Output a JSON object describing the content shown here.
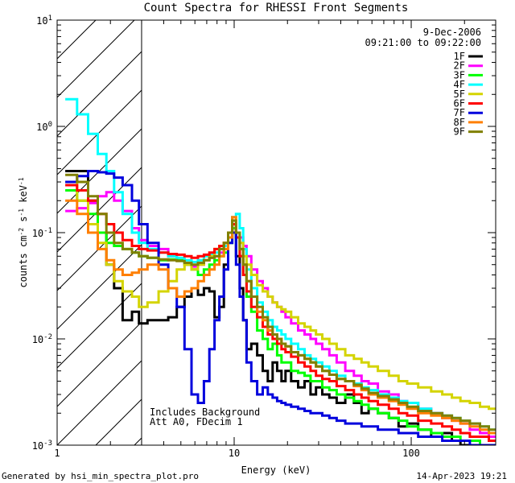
{
  "chart_data": {
    "type": "line",
    "title": "Count Spectra for RHESSI Front Segments",
    "xlabel": "Energy (keV)",
    "ylabel": {
      "main": "counts cm",
      "exp1": "-2",
      "mid": " s",
      "exp2": "-1",
      "end": " keV",
      "exp3": "-1"
    },
    "xscale": "log",
    "yscale": "log",
    "xlim": [
      1,
      300
    ],
    "ylim": [
      0.001,
      10
    ],
    "xticks": [
      {
        "v": 1,
        "label": "1"
      },
      {
        "v": 10,
        "label": "10"
      },
      {
        "v": 100,
        "label": "100"
      }
    ],
    "yticks": [
      {
        "v": 0.001,
        "base": "10",
        "exp": "-3"
      },
      {
        "v": 0.01,
        "base": "10",
        "exp": "-2"
      },
      {
        "v": 0.1,
        "base": "10",
        "exp": "-1"
      },
      {
        "v": 1,
        "base": "10",
        "exp": "0"
      },
      {
        "v": 10,
        "base": "10",
        "exp": "1"
      }
    ],
    "date": "9-Dec-2006",
    "time_range": "09:21:00 to 09:22:00",
    "annotations": [
      "Includes Background",
      "Att A0, FDecim 1"
    ],
    "excluded_region_keV": [
      1,
      3
    ],
    "legend_position": "top-right",
    "series": [
      {
        "name": "1F",
        "color": "#000000",
        "x": [
          1.2,
          1.4,
          1.6,
          1.8,
          2.0,
          2.2,
          2.5,
          2.8,
          3.0,
          3.5,
          4.0,
          4.5,
          5.0,
          5.5,
          6.0,
          6.5,
          7.0,
          7.5,
          8.0,
          8.5,
          9.0,
          9.5,
          10.0,
          10.5,
          11.0,
          11.5,
          12,
          13,
          14,
          15,
          16,
          17,
          18,
          19,
          20,
          22,
          24,
          26,
          28,
          30,
          33,
          36,
          40,
          45,
          50,
          55,
          60,
          70,
          80,
          90,
          100,
          120,
          140,
          160,
          180,
          200,
          230,
          260,
          290
        ],
        "y": [
          0.38,
          0.38,
          0.2,
          0.1,
          0.05,
          0.03,
          0.015,
          0.018,
          0.014,
          0.015,
          0.015,
          0.016,
          0.02,
          0.025,
          0.03,
          0.026,
          0.03,
          0.028,
          0.016,
          0.02,
          0.05,
          0.09,
          0.12,
          0.06,
          0.03,
          0.015,
          0.008,
          0.009,
          0.007,
          0.005,
          0.004,
          0.006,
          0.005,
          0.004,
          0.005,
          0.004,
          0.0035,
          0.004,
          0.003,
          0.0035,
          0.003,
          0.0028,
          0.0025,
          0.003,
          0.0025,
          0.002,
          0.0022,
          0.002,
          0.0018,
          0.0015,
          0.0016,
          0.0014,
          0.0012,
          0.0013,
          0.0011,
          0.001,
          0.001,
          0.001,
          0.001
        ]
      },
      {
        "name": "2F",
        "color": "#ff00ff",
        "x": [
          1.2,
          1.4,
          1.6,
          1.8,
          2.0,
          2.2,
          2.5,
          2.8,
          3.0,
          3.5,
          4.0,
          4.5,
          5.0,
          5.5,
          6.0,
          6.5,
          7.0,
          7.5,
          8.0,
          8.5,
          9.0,
          9.5,
          10.0,
          10.5,
          11.0,
          11.5,
          12,
          13,
          14,
          15,
          16,
          17,
          18,
          19,
          20,
          22,
          24,
          26,
          28,
          30,
          33,
          36,
          40,
          45,
          50,
          55,
          60,
          70,
          80,
          90,
          100,
          120,
          140,
          160,
          180,
          200,
          230,
          260,
          290
        ],
        "y": [
          0.16,
          0.17,
          0.19,
          0.22,
          0.24,
          0.2,
          0.16,
          0.11,
          0.085,
          0.075,
          0.07,
          0.06,
          0.055,
          0.05,
          0.048,
          0.05,
          0.055,
          0.058,
          0.06,
          0.065,
          0.07,
          0.09,
          0.12,
          0.1,
          0.09,
          0.075,
          0.06,
          0.045,
          0.035,
          0.03,
          0.025,
          0.022,
          0.02,
          0.018,
          0.016,
          0.014,
          0.012,
          0.011,
          0.01,
          0.009,
          0.008,
          0.007,
          0.006,
          0.005,
          0.0045,
          0.004,
          0.0038,
          0.0032,
          0.003,
          0.0026,
          0.0025,
          0.0022,
          0.002,
          0.0018,
          0.0017,
          0.0016,
          0.0014,
          0.0013,
          0.0012
        ]
      },
      {
        "name": "3F",
        "color": "#00ff00",
        "x": [
          1.2,
          1.4,
          1.6,
          1.8,
          2.0,
          2.2,
          2.5,
          2.8,
          3.0,
          3.5,
          4.0,
          4.5,
          5.0,
          5.5,
          6.0,
          6.5,
          7.0,
          7.5,
          8.0,
          8.5,
          9.0,
          9.5,
          10.0,
          10.5,
          11.0,
          11.5,
          12,
          13,
          14,
          15,
          16,
          17,
          18,
          19,
          20,
          22,
          24,
          26,
          28,
          30,
          33,
          36,
          40,
          45,
          50,
          55,
          60,
          70,
          80,
          90,
          100,
          120,
          140,
          160,
          180,
          200,
          230,
          260,
          290
        ],
        "y": [
          0.25,
          0.2,
          0.15,
          0.1,
          0.08,
          0.075,
          0.07,
          0.065,
          0.06,
          0.058,
          0.055,
          0.056,
          0.055,
          0.05,
          0.045,
          0.04,
          0.045,
          0.05,
          0.055,
          0.06,
          0.065,
          0.08,
          0.11,
          0.09,
          0.06,
          0.04,
          0.025,
          0.018,
          0.012,
          0.01,
          0.008,
          0.009,
          0.007,
          0.006,
          0.006,
          0.005,
          0.0048,
          0.0045,
          0.004,
          0.004,
          0.0035,
          0.0033,
          0.003,
          0.0028,
          0.0026,
          0.0024,
          0.0022,
          0.002,
          0.0018,
          0.0017,
          0.0015,
          0.0014,
          0.0013,
          0.0012,
          0.0012,
          0.0011,
          0.0011,
          0.001,
          0.001
        ]
      },
      {
        "name": "4F",
        "color": "#00ffff",
        "x": [
          1.2,
          1.4,
          1.6,
          1.8,
          2.0,
          2.2,
          2.5,
          2.8,
          3.0,
          3.5,
          4.0,
          4.5,
          5.0,
          5.5,
          6.0,
          6.5,
          7.0,
          7.5,
          8.0,
          8.5,
          9.0,
          9.5,
          10.0,
          10.5,
          11.0,
          11.5,
          12,
          13,
          14,
          15,
          16,
          17,
          18,
          19,
          20,
          22,
          24,
          26,
          28,
          30,
          33,
          36,
          40,
          45,
          50,
          55,
          60,
          70,
          80,
          90,
          100,
          120,
          140,
          160,
          180,
          200,
          230,
          260,
          290
        ],
        "y": [
          1.8,
          1.3,
          0.85,
          0.55,
          0.38,
          0.24,
          0.15,
          0.1,
          0.08,
          0.07,
          0.065,
          0.06,
          0.058,
          0.055,
          0.053,
          0.055,
          0.06,
          0.062,
          0.065,
          0.07,
          0.075,
          0.09,
          0.14,
          0.15,
          0.11,
          0.07,
          0.045,
          0.03,
          0.022,
          0.018,
          0.015,
          0.013,
          0.012,
          0.011,
          0.01,
          0.009,
          0.008,
          0.007,
          0.0065,
          0.006,
          0.0055,
          0.005,
          0.0045,
          0.004,
          0.0038,
          0.0035,
          0.0033,
          0.003,
          0.0028,
          0.0026,
          0.0025,
          0.0022,
          0.002,
          0.0019,
          0.0018,
          0.0017,
          0.0016,
          0.0015,
          0.0014
        ]
      },
      {
        "name": "5F",
        "color": "#d4d400",
        "x": [
          1.2,
          1.4,
          1.6,
          1.8,
          2.0,
          2.2,
          2.5,
          2.8,
          3.0,
          3.5,
          4.0,
          4.5,
          5.0,
          5.5,
          6.0,
          6.5,
          7.0,
          7.5,
          8.0,
          8.5,
          9.0,
          9.5,
          10.0,
          10.5,
          11.0,
          11.5,
          12,
          13,
          14,
          15,
          16,
          17,
          18,
          19,
          20,
          22,
          24,
          26,
          28,
          30,
          33,
          36,
          40,
          45,
          50,
          55,
          60,
          70,
          80,
          90,
          100,
          120,
          140,
          160,
          180,
          200,
          230,
          260,
          290
        ],
        "y": [
          0.3,
          0.2,
          0.12,
          0.08,
          0.05,
          0.035,
          0.028,
          0.025,
          0.02,
          0.022,
          0.028,
          0.035,
          0.045,
          0.05,
          0.045,
          0.05,
          0.055,
          0.06,
          0.07,
          0.075,
          0.08,
          0.1,
          0.12,
          0.1,
          0.08,
          0.06,
          0.05,
          0.04,
          0.032,
          0.028,
          0.025,
          0.022,
          0.02,
          0.019,
          0.018,
          0.016,
          0.014,
          0.013,
          0.012,
          0.011,
          0.01,
          0.009,
          0.008,
          0.007,
          0.0065,
          0.006,
          0.0055,
          0.005,
          0.0045,
          0.004,
          0.0038,
          0.0035,
          0.0032,
          0.003,
          0.0028,
          0.0026,
          0.0025,
          0.0023,
          0.0022
        ]
      },
      {
        "name": "6F",
        "color": "#ff0000",
        "x": [
          1.2,
          1.4,
          1.6,
          1.8,
          2.0,
          2.2,
          2.5,
          2.8,
          3.0,
          3.5,
          4.0,
          4.5,
          5.0,
          5.5,
          6.0,
          6.5,
          7.0,
          7.5,
          8.0,
          8.5,
          9.0,
          9.5,
          10.0,
          10.5,
          11.0,
          11.5,
          12,
          13,
          14,
          15,
          16,
          17,
          18,
          19,
          20,
          22,
          24,
          26,
          28,
          30,
          33,
          36,
          40,
          45,
          50,
          55,
          60,
          70,
          80,
          90,
          100,
          120,
          140,
          160,
          180,
          200,
          230,
          260,
          290
        ],
        "y": [
          0.28,
          0.25,
          0.2,
          0.15,
          0.12,
          0.1,
          0.085,
          0.075,
          0.07,
          0.068,
          0.065,
          0.063,
          0.062,
          0.06,
          0.058,
          0.06,
          0.062,
          0.065,
          0.07,
          0.075,
          0.08,
          0.1,
          0.12,
          0.09,
          0.06,
          0.04,
          0.028,
          0.02,
          0.016,
          0.013,
          0.011,
          0.01,
          0.009,
          0.008,
          0.0075,
          0.0068,
          0.006,
          0.0055,
          0.005,
          0.0045,
          0.0042,
          0.004,
          0.0036,
          0.0033,
          0.003,
          0.0028,
          0.0026,
          0.0024,
          0.0022,
          0.002,
          0.0019,
          0.0017,
          0.0016,
          0.0015,
          0.0014,
          0.0013,
          0.0012,
          0.0012,
          0.0011
        ]
      },
      {
        "name": "7F",
        "color": "#0000dd",
        "x": [
          1.2,
          1.4,
          1.6,
          1.8,
          2.0,
          2.2,
          2.5,
          2.8,
          3.0,
          3.5,
          4.0,
          4.5,
          5.0,
          5.5,
          6.0,
          6.5,
          7.0,
          7.5,
          8.0,
          8.5,
          9.0,
          9.5,
          10.0,
          10.5,
          11.0,
          11.5,
          12,
          13,
          14,
          15,
          16,
          17,
          18,
          19,
          20,
          22,
          24,
          26,
          28,
          30,
          33,
          36,
          40,
          45,
          50,
          55,
          60,
          70,
          80,
          90,
          100,
          120,
          140,
          160,
          180,
          200,
          230,
          260,
          290
        ],
        "y": [
          0.3,
          0.34,
          0.38,
          0.37,
          0.36,
          0.33,
          0.28,
          0.2,
          0.12,
          0.08,
          0.05,
          0.03,
          0.02,
          0.008,
          0.003,
          0.0025,
          0.004,
          0.008,
          0.015,
          0.025,
          0.045,
          0.08,
          0.1,
          0.05,
          0.025,
          0.015,
          0.006,
          0.004,
          0.003,
          0.0035,
          0.003,
          0.0028,
          0.0026,
          0.0025,
          0.0024,
          0.0023,
          0.0022,
          0.0021,
          0.002,
          0.002,
          0.0019,
          0.0018,
          0.0017,
          0.0016,
          0.0016,
          0.0015,
          0.0015,
          0.0014,
          0.0014,
          0.0013,
          0.0013,
          0.0012,
          0.0012,
          0.0011,
          0.0011,
          0.0011,
          0.001,
          0.001,
          0.001
        ]
      },
      {
        "name": "8F",
        "color": "#ff7f00",
        "x": [
          1.2,
          1.4,
          1.6,
          1.8,
          2.0,
          2.2,
          2.5,
          2.8,
          3.0,
          3.5,
          4.0,
          4.5,
          5.0,
          5.5,
          6.0,
          6.5,
          7.0,
          7.5,
          8.0,
          8.5,
          9.0,
          9.5,
          10.0,
          10.5,
          11.0,
          11.5,
          12,
          13,
          14,
          15,
          16,
          17,
          18,
          19,
          20,
          22,
          24,
          26,
          28,
          30,
          33,
          36,
          40,
          45,
          50,
          55,
          60,
          70,
          80,
          90,
          100,
          120,
          140,
          160,
          180,
          200,
          230,
          260,
          290
        ],
        "y": [
          0.2,
          0.15,
          0.1,
          0.07,
          0.055,
          0.045,
          0.04,
          0.042,
          0.045,
          0.05,
          0.045,
          0.03,
          0.025,
          0.028,
          0.03,
          0.035,
          0.04,
          0.045,
          0.05,
          0.06,
          0.07,
          0.09,
          0.14,
          0.1,
          0.07,
          0.05,
          0.035,
          0.025,
          0.018,
          0.015,
          0.012,
          0.011,
          0.01,
          0.009,
          0.0085,
          0.0075,
          0.007,
          0.0065,
          0.006,
          0.0055,
          0.005,
          0.0046,
          0.0042,
          0.004,
          0.0036,
          0.0033,
          0.003,
          0.0028,
          0.0026,
          0.0024,
          0.0022,
          0.002,
          0.0019,
          0.0018,
          0.0017,
          0.0016,
          0.0015,
          0.0014,
          0.0013
        ]
      },
      {
        "name": "9F",
        "color": "#808000",
        "x": [
          1.2,
          1.4,
          1.6,
          1.8,
          2.0,
          2.2,
          2.5,
          2.8,
          3.0,
          3.5,
          4.0,
          4.5,
          5.0,
          5.5,
          6.0,
          6.5,
          7.0,
          7.5,
          8.0,
          8.5,
          9.0,
          9.5,
          10.0,
          10.5,
          11.0,
          11.5,
          12,
          13,
          14,
          15,
          16,
          17,
          18,
          19,
          20,
          22,
          24,
          26,
          28,
          30,
          33,
          36,
          40,
          45,
          50,
          55,
          60,
          70,
          80,
          90,
          100,
          120,
          140,
          160,
          180,
          200,
          230,
          260,
          290
        ],
        "y": [
          0.35,
          0.3,
          0.22,
          0.15,
          0.1,
          0.08,
          0.07,
          0.065,
          0.06,
          0.058,
          0.056,
          0.055,
          0.054,
          0.052,
          0.05,
          0.052,
          0.055,
          0.058,
          0.06,
          0.07,
          0.08,
          0.1,
          0.13,
          0.1,
          0.07,
          0.05,
          0.035,
          0.025,
          0.02,
          0.016,
          0.013,
          0.011,
          0.01,
          0.009,
          0.0085,
          0.0075,
          0.007,
          0.0065,
          0.006,
          0.0055,
          0.005,
          0.0046,
          0.0042,
          0.004,
          0.0037,
          0.0034,
          0.0031,
          0.0029,
          0.0027,
          0.0025,
          0.0023,
          0.0021,
          0.002,
          0.0019,
          0.0018,
          0.0017,
          0.0016,
          0.0015,
          0.0014
        ]
      }
    ]
  },
  "footer": {
    "generated_by": "Generated by hsi_min_spectra_plot.pro",
    "timestamp": "14-Apr-2023 19:21"
  }
}
